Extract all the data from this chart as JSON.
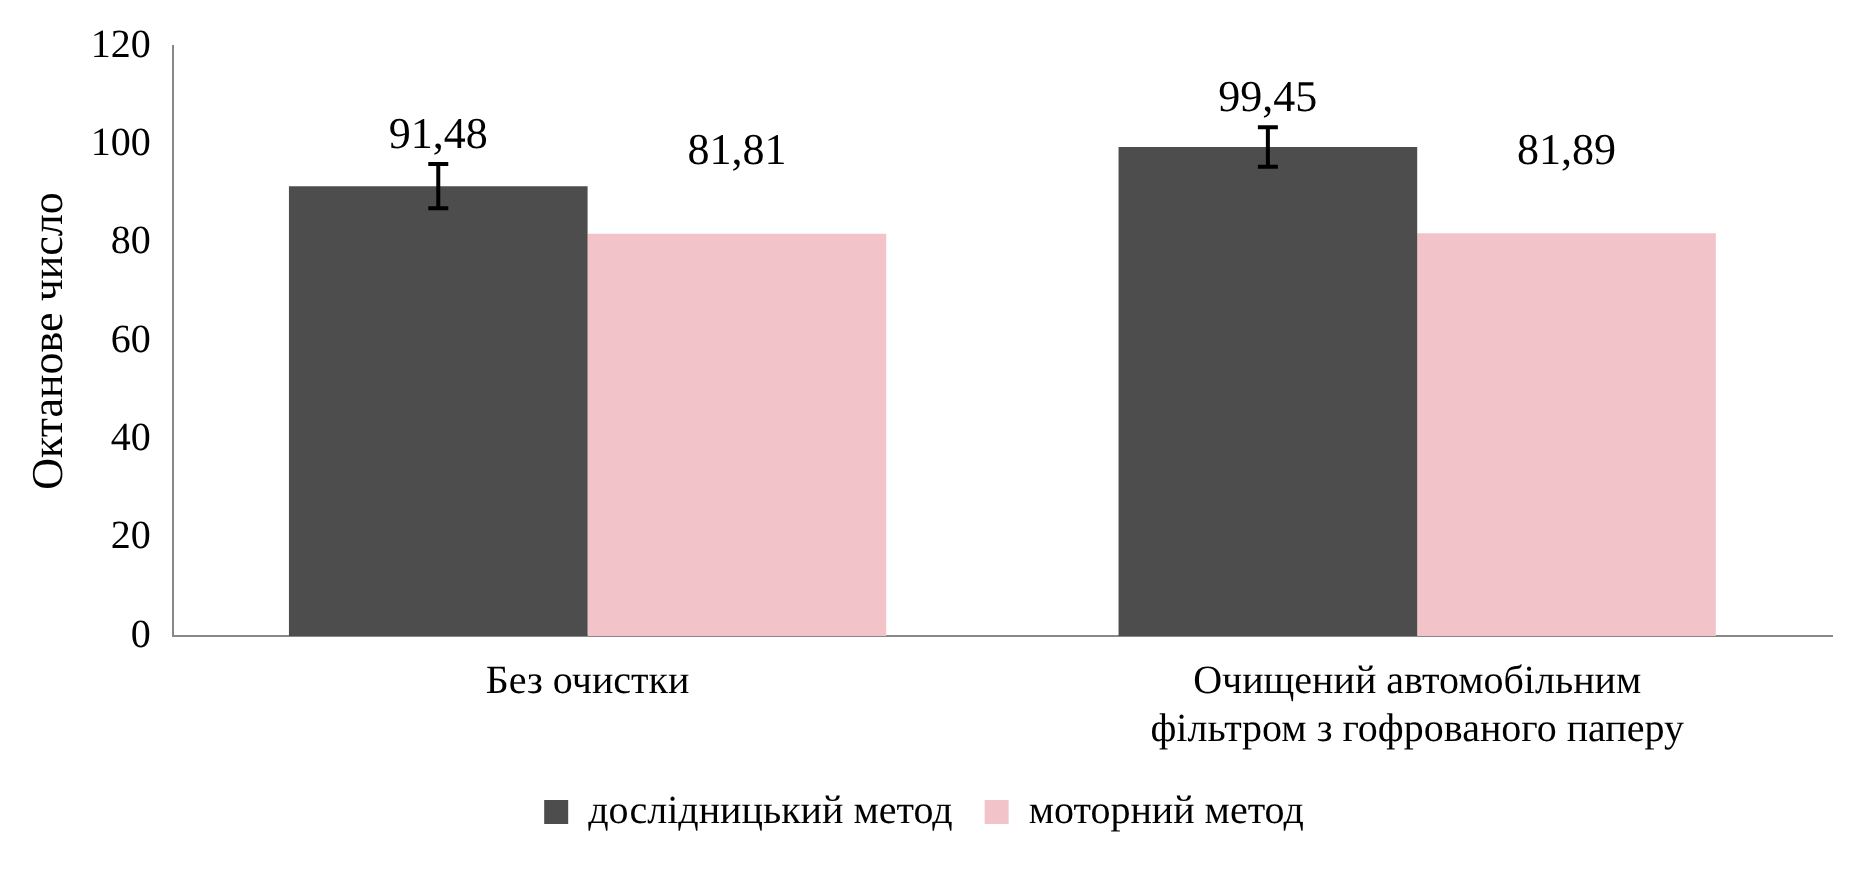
{
  "chart_data": {
    "type": "bar",
    "ylabel": "Октанове число",
    "categories": [
      "Без очистки",
      "Очищений автомобільним фільтром з гофрованого паперу"
    ],
    "series": [
      {
        "name": "дослідницький метод",
        "color": "#4d4d4d",
        "values": [
          91.48,
          99.45
        ],
        "value_labels": [
          "91,48",
          "99,45"
        ],
        "errors": [
          4.5,
          4
        ]
      },
      {
        "name": "моторний метод",
        "color": "#f2c4ca",
        "values": [
          81.81,
          81.89
        ],
        "value_labels": [
          "81,81",
          "81,89"
        ]
      }
    ],
    "ylim": [
      0,
      120
    ],
    "yticks": [
      0,
      20,
      40,
      60,
      80,
      100,
      120
    ],
    "grid": false,
    "legend": "bottom"
  }
}
